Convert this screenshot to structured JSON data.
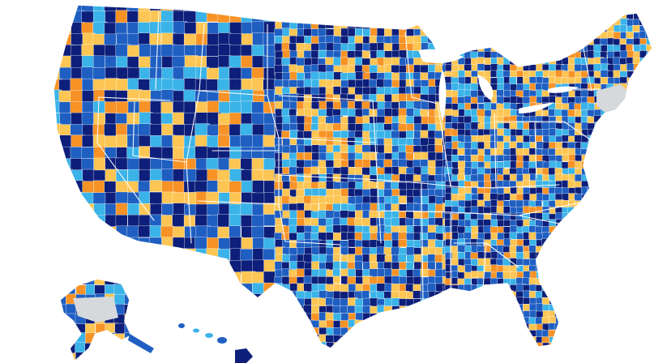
{
  "map": {
    "projection": "us-albers-composite",
    "colors": {
      "background": "#ffffff",
      "border": "#ffffff",
      "no_data": "#d5d9dc",
      "scale": [
        "#0d1f7a",
        "#1f5fc2",
        "#3ab3e8",
        "#fdc553",
        "#f79326"
      ]
    },
    "category_shares": [
      0.26,
      0.28,
      0.16,
      0.2,
      0.1
    ],
    "regions": [
      "contiguous-us",
      "alaska",
      "hawaii"
    ],
    "no_data_areas": [
      "northern-new-england-south",
      "alaska-interior"
    ]
  }
}
